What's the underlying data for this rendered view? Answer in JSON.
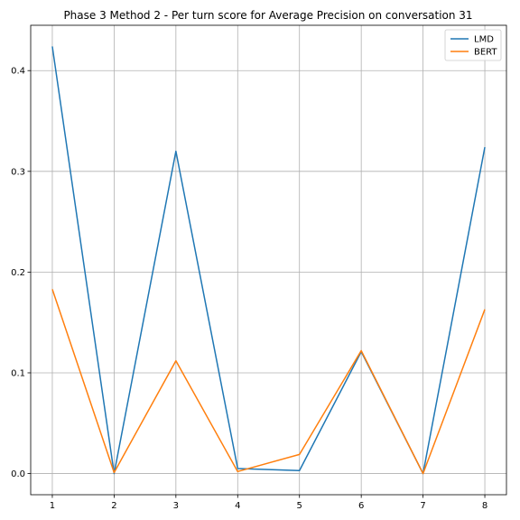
{
  "chart_data": {
    "type": "line",
    "title": "Phase 3 Method 2 - Per turn score for Average Precision on conversation 31",
    "xlabel": "",
    "ylabel": "",
    "x": [
      1,
      2,
      3,
      4,
      5,
      6,
      7,
      8
    ],
    "xticks": [
      "1",
      "2",
      "3",
      "4",
      "5",
      "6",
      "7",
      "8"
    ],
    "yticks": [
      "0.0",
      "0.1",
      "0.2",
      "0.3",
      "0.4"
    ],
    "xlim": [
      0.65,
      8.35
    ],
    "ylim": [
      -0.021,
      0.445
    ],
    "grid": true,
    "legend_position": "top-right",
    "series": [
      {
        "name": "LMD",
        "color": "#1f77b4",
        "values": [
          0.424,
          0.0,
          0.32,
          0.005,
          0.003,
          0.121,
          0.0,
          0.324
        ]
      },
      {
        "name": "BERT",
        "color": "#ff7f0e",
        "values": [
          0.183,
          0.001,
          0.112,
          0.002,
          0.019,
          0.122,
          0.0,
          0.163
        ]
      }
    ]
  }
}
